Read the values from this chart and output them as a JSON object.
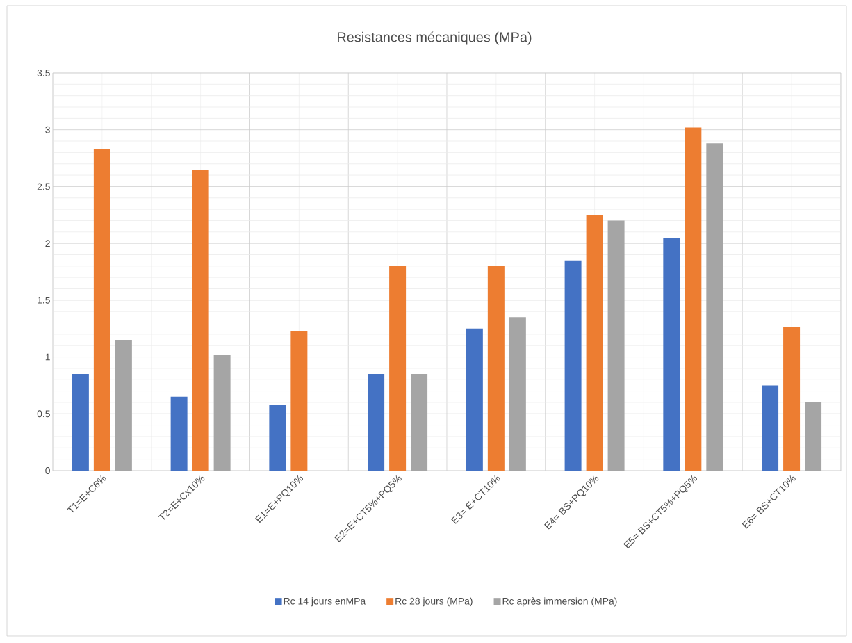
{
  "chart_data": {
    "type": "bar",
    "title": "Resistances mécaniques (MPa)",
    "categories": [
      "T1=E+C6%",
      "T2=E+Cx10%",
      "E1=E+PQ10%",
      "E2=E+CT5%+PQ5%",
      "E3= E+CT10%",
      "E4= BS+PQ10%",
      "E5= BS+CT5%+PQ5%",
      "E6= BS+CT10%"
    ],
    "series": [
      {
        "name": "Rc 14 jours enMPa",
        "color": "#4472c4",
        "values": [
          0.85,
          0.65,
          0.58,
          0.85,
          1.25,
          1.85,
          2.05,
          0.75
        ]
      },
      {
        "name": "Rc 28 jours (MPa)",
        "color": "#ed7d31",
        "values": [
          2.83,
          2.65,
          1.23,
          1.8,
          1.8,
          2.25,
          3.02,
          1.26
        ]
      },
      {
        "name": "Rc après immersion (MPa)",
        "color": "#a5a5a5",
        "values": [
          1.15,
          1.02,
          null,
          0.85,
          1.35,
          2.2,
          2.88,
          0.6
        ]
      }
    ],
    "ylim": [
      0,
      3.5
    ],
    "yticks": [
      0,
      0.5,
      1,
      1.5,
      2,
      2.5,
      3,
      3.5
    ],
    "grid": true,
    "legend": "bottom"
  }
}
